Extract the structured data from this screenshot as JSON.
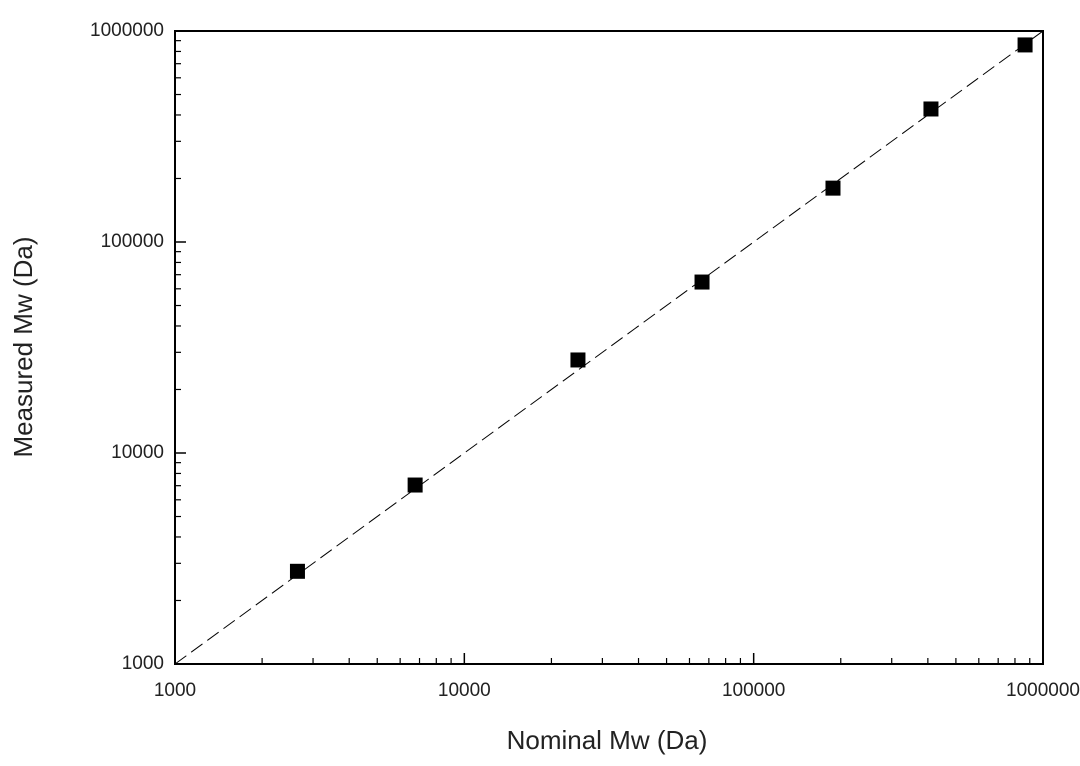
{
  "chart_data": {
    "type": "scatter",
    "x_label": "Nominal Mw (Da)",
    "y_label": "Measured Mw (Da)",
    "log_x": true,
    "log_y": true,
    "xlim": [
      1000,
      1000000
    ],
    "ylim": [
      1000,
      1000000
    ],
    "xticks": [
      1000,
      10000,
      100000,
      1000000
    ],
    "yticks": [
      1000,
      10000,
      100000,
      1000000
    ],
    "minor_ticks": true,
    "identity_line": true,
    "series": [
      {
        "color": "#000000",
        "x": [
          2650,
          6760,
          24700,
          66300,
          188000,
          410000,
          867000
        ],
        "values": [
          2750,
          7050,
          27600,
          64600,
          180000,
          427000,
          859000
        ]
      }
    ]
  }
}
